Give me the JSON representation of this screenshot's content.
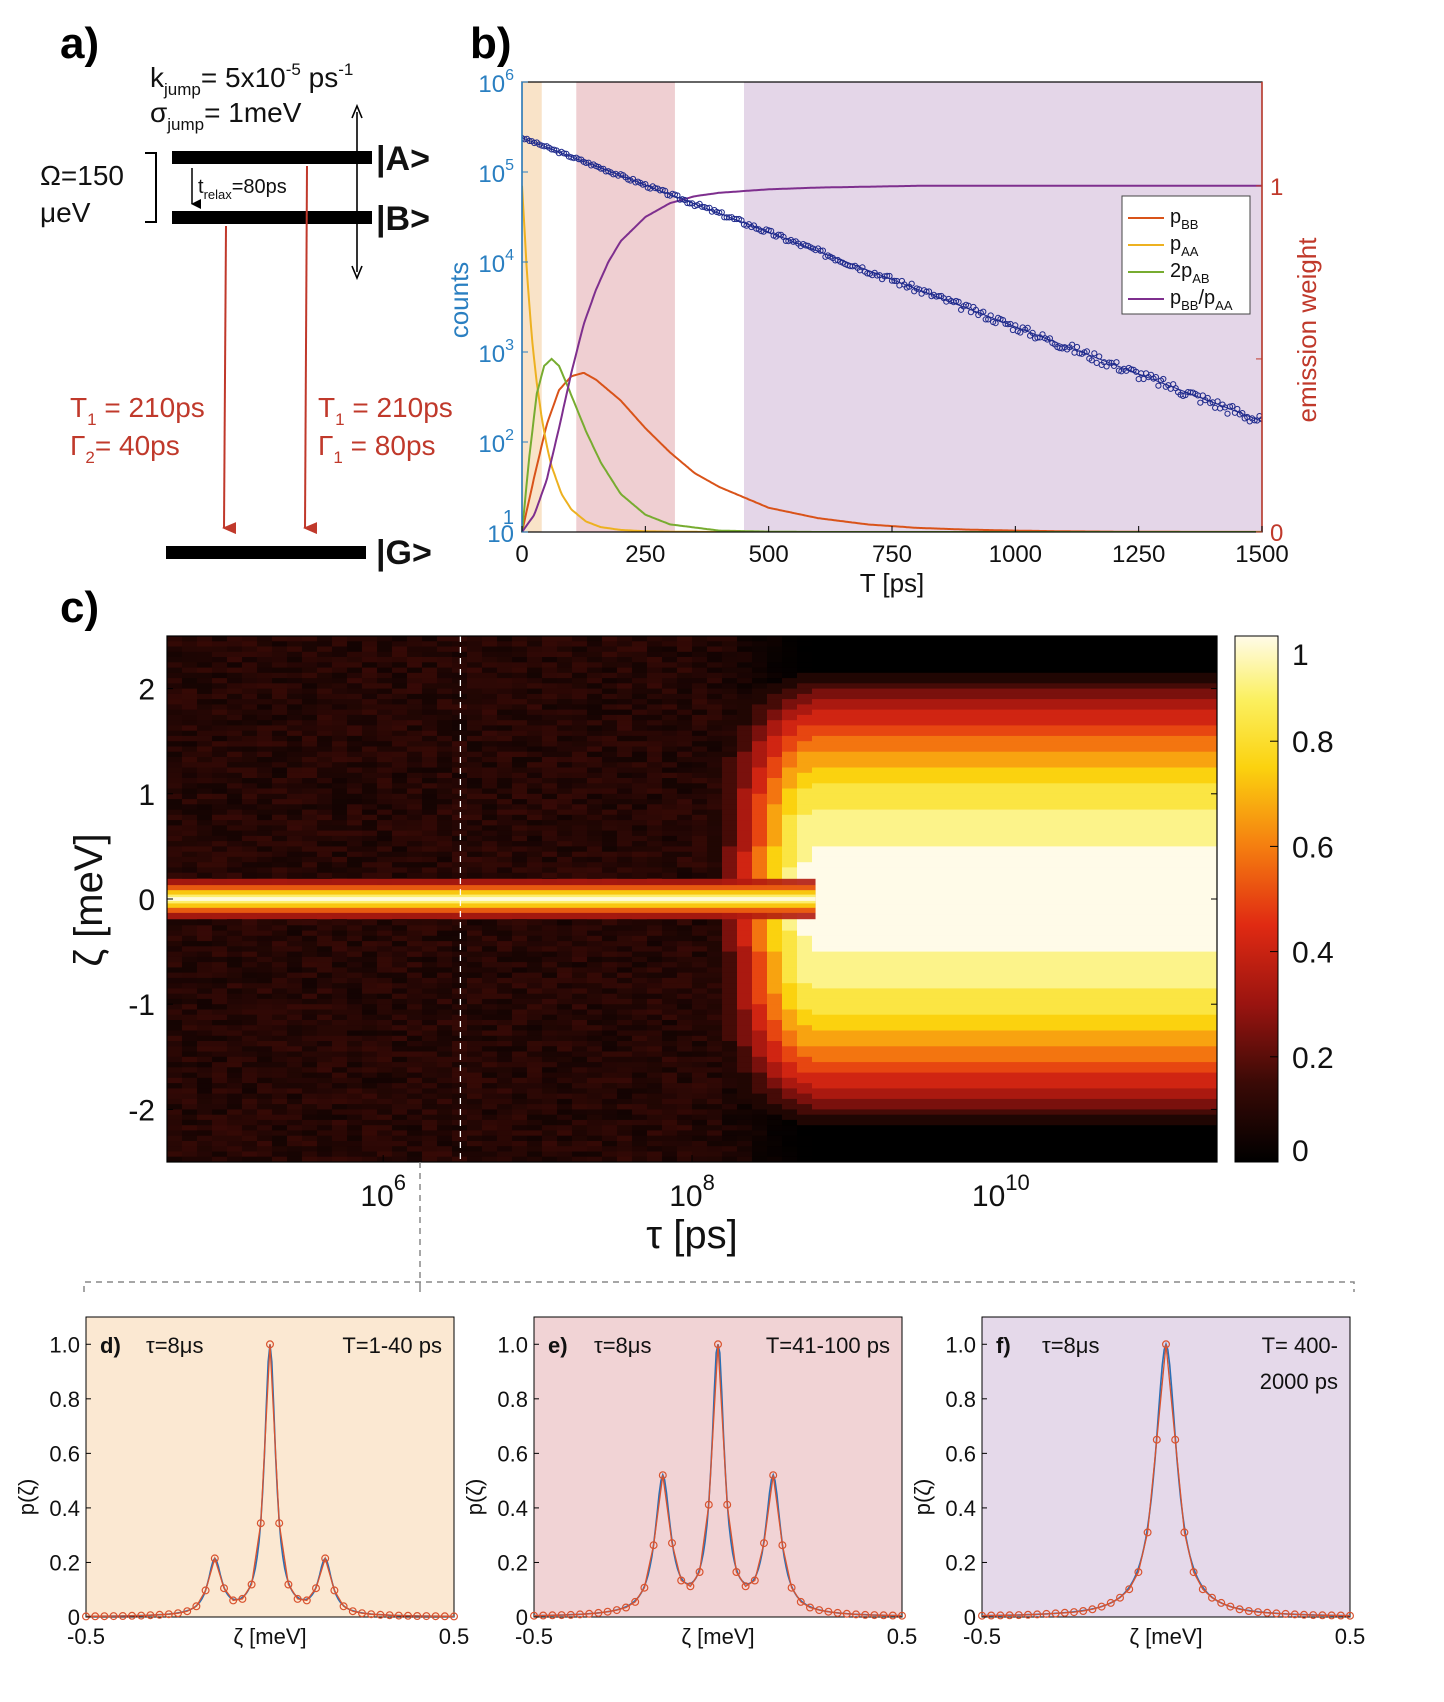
{
  "panel_labels": {
    "a": "a)",
    "b": "b)",
    "c": "c)",
    "d": "d)",
    "e": "e)",
    "f": "f)"
  },
  "panel_a": {
    "k_jump": {
      "prefix": "k",
      "sub": "jump",
      "rest": "= 5x10",
      "sup": "-5",
      "tail": " ps",
      "tail_sup": "-1"
    },
    "sigma_jump": {
      "prefix": "σ",
      "sub": "jump",
      "rest": "= 1meV"
    },
    "omega_line1": "Ω=150",
    "omega_line2": "μeV",
    "t_relax": {
      "prefix": "t",
      "sub": "relax",
      "rest": "=80ps"
    },
    "state_A": "|A>",
    "state_B": "|B>",
    "state_G": "|G>",
    "left_T1": {
      "prefix": "T",
      "sub": "1",
      "rest": " = 210ps"
    },
    "left_Gamma": {
      "prefix": "Γ",
      "sub": "2",
      "rest": "= 40ps"
    },
    "right_T1": {
      "prefix": "T",
      "sub": "1",
      "rest": " = 210ps"
    },
    "right_Gamma": {
      "prefix": "Γ",
      "sub": "1",
      "rest": " = 80ps"
    },
    "colors": {
      "arrow": "#c0392b",
      "level": "#000000"
    }
  },
  "chart_data": [
    {
      "id": "b",
      "type": "line",
      "xlabel": "T [ps]",
      "ylabel_left": "counts",
      "ylabel_right": "emission weight",
      "xlim": [
        0,
        1500
      ],
      "x_ticks": [
        "0",
        "250",
        "500",
        "750",
        "1000",
        "1250",
        "1500"
      ],
      "y_left_scale": "log",
      "y_left_ticks": [
        {
          "base": "1",
          "exp": "",
          "label": "10"
        },
        {
          "base": "10",
          "exp": "2"
        },
        {
          "base": "10",
          "exp": "3"
        },
        {
          "base": "10",
          "exp": "4"
        },
        {
          "base": "10",
          "exp": "5"
        },
        {
          "base": "10",
          "exp": "6"
        }
      ],
      "ylim_left": [
        10,
        1000000
      ],
      "y_right_ticks": [
        "0",
        "1"
      ],
      "ylim_right": [
        0,
        1.3
      ],
      "shaded_regions": [
        {
          "x0": 0,
          "x1": 40,
          "color": "#f9e3c8"
        },
        {
          "x0": 110,
          "x1": 310,
          "color": "#efcfd2"
        },
        {
          "x0": 450,
          "x1": 1500,
          "color": "#e4d6e8"
        }
      ],
      "legend": {
        "position": "top-right",
        "entries": [
          {
            "name": "p",
            "sub": "BB",
            "color": "#d95319"
          },
          {
            "name": "p",
            "sub": "AA",
            "color": "#edb120"
          },
          {
            "name": "2p",
            "sub": "AB",
            "color": "#77ac30"
          },
          {
            "name": "p",
            "sub": "BB",
            "name2": "/p",
            "sub2": "AA",
            "color": "#7e2f8e"
          }
        ]
      },
      "series": [
        {
          "name": "counts",
          "axis": "left",
          "style": "markers",
          "color": "#1f2a8c",
          "fit": "exponential",
          "y_at_0": 240000,
          "y_at_1500": 170,
          "start": 0,
          "stop": 1500
        },
        {
          "name": "p_BB",
          "axis": "right",
          "color": "#d95319",
          "x": [
            0,
            25,
            50,
            75,
            100,
            125,
            150,
            200,
            250,
            300,
            350,
            400,
            500,
            600,
            700,
            800,
            900,
            1000,
            1100,
            1200,
            1300,
            1400,
            1500
          ],
          "y": [
            0,
            0.16,
            0.31,
            0.41,
            0.45,
            0.46,
            0.44,
            0.38,
            0.3,
            0.23,
            0.17,
            0.13,
            0.07,
            0.04,
            0.022,
            0.012,
            0.007,
            0.004,
            0.002,
            0.001,
            0.0005,
            0.0003,
            0.0002
          ]
        },
        {
          "name": "p_AA",
          "axis": "right",
          "color": "#edb120",
          "x": [
            0,
            10,
            20,
            30,
            40,
            50,
            60,
            80,
            100,
            130,
            160,
            200,
            250,
            300,
            400,
            500,
            1500
          ],
          "y": [
            1.0,
            0.75,
            0.56,
            0.43,
            0.33,
            0.25,
            0.19,
            0.11,
            0.065,
            0.03,
            0.014,
            0.006,
            0.002,
            0.001,
            0,
            0,
            0
          ]
        },
        {
          "name": "2p_AB",
          "axis": "right",
          "color": "#77ac30",
          "x": [
            0,
            15,
            30,
            45,
            60,
            75,
            90,
            110,
            130,
            160,
            200,
            250,
            300,
            400,
            500,
            600,
            1500
          ],
          "y": [
            0,
            0.22,
            0.4,
            0.48,
            0.5,
            0.48,
            0.43,
            0.36,
            0.29,
            0.2,
            0.11,
            0.05,
            0.022,
            0.004,
            0.001,
            0,
            0
          ]
        },
        {
          "name": "p_BB/p_AA",
          "axis": "right",
          "color": "#7e2f8e",
          "x": [
            0,
            25,
            50,
            75,
            100,
            125,
            150,
            175,
            200,
            250,
            300,
            350,
            400,
            500,
            600,
            800,
            1000,
            1500
          ],
          "y": [
            0,
            0.05,
            0.15,
            0.3,
            0.46,
            0.6,
            0.7,
            0.78,
            0.84,
            0.91,
            0.95,
            0.97,
            0.98,
            0.99,
            0.995,
            1.0,
            1.0,
            1.0
          ]
        }
      ]
    },
    {
      "id": "c",
      "type": "heatmap",
      "xlabel": "τ [ps]",
      "ylabel": "ζ [meV]",
      "x_scale": "log",
      "xlim_exp": [
        4.6,
        11.4
      ],
      "x_ticks": [
        {
          "base": "10",
          "exp": "6",
          "value_exp": 6
        },
        {
          "base": "10",
          "exp": "8",
          "value_exp": 8
        },
        {
          "base": "10",
          "exp": "10",
          "value_exp": 10
        }
      ],
      "ylim": [
        -2.5,
        2.5
      ],
      "y_ticks": [
        "2",
        "1",
        "0",
        "-1",
        "-2"
      ],
      "colorbar_ticks": [
        "1",
        "0.8",
        "0.6",
        "0.4",
        "0.2",
        "0"
      ],
      "colormap": "hot",
      "marker_line_tau_exp": 6.5,
      "transition_tau_exp": [
        8.0,
        8.8
      ],
      "narrow_line_width_meV": 0.06,
      "broad_half_width_meV": 2.2
    },
    {
      "id": "d",
      "type": "line",
      "label": "d)",
      "tau_text": "τ=8μs",
      "T_text": "T=1-40 ps",
      "T_text2": "",
      "background": "#fbe8d2",
      "xlabel": "ζ [meV]",
      "ylabel": "p(ζ)",
      "xlim": [
        -0.5,
        0.5
      ],
      "ylim": [
        0,
        1.1
      ],
      "x_ticks": [
        "-0.5",
        "0.5"
      ],
      "y_ticks": [
        "0",
        "0.2",
        "0.4",
        "0.6",
        "0.8",
        "1.0"
      ],
      "side_peak_pos": 0.15,
      "side_peak_height": 0.2,
      "center_width": 0.018,
      "side_width": 0.022
    },
    {
      "id": "e",
      "type": "line",
      "label": "e)",
      "tau_text": "τ=8μs",
      "T_text": "T=41-100 ps",
      "T_text2": "",
      "background": "#f1d3d5",
      "xlabel": "ζ [meV]",
      "ylabel": "p(ζ)",
      "xlim": [
        -0.5,
        0.5
      ],
      "ylim": [
        0,
        1.1
      ],
      "x_ticks": [
        "-0.5",
        "0.5"
      ],
      "y_ticks": [
        "0",
        "0.2",
        "0.4",
        "0.6",
        "0.8",
        "1.0"
      ],
      "side_peak_pos": 0.15,
      "side_peak_height": 0.5,
      "center_width": 0.02,
      "side_width": 0.025
    },
    {
      "id": "f",
      "type": "line",
      "label": "f)",
      "tau_text": "τ=8μs",
      "T_text": "T= 400-",
      "T_text2": "2000 ps",
      "background": "#e5d9ea",
      "xlabel": "ζ [meV]",
      "ylabel": "p(ζ)",
      "xlim": [
        -0.5,
        0.5
      ],
      "ylim": [
        0,
        1.1
      ],
      "x_ticks": [
        "-0.5",
        "0.5"
      ],
      "y_ticks": [
        "0",
        "0.2",
        "0.4",
        "0.6",
        "0.8",
        "1.0"
      ],
      "side_peak_pos": 0,
      "side_peak_height": 0,
      "center_width": 0.035,
      "side_width": 0.02
    }
  ]
}
